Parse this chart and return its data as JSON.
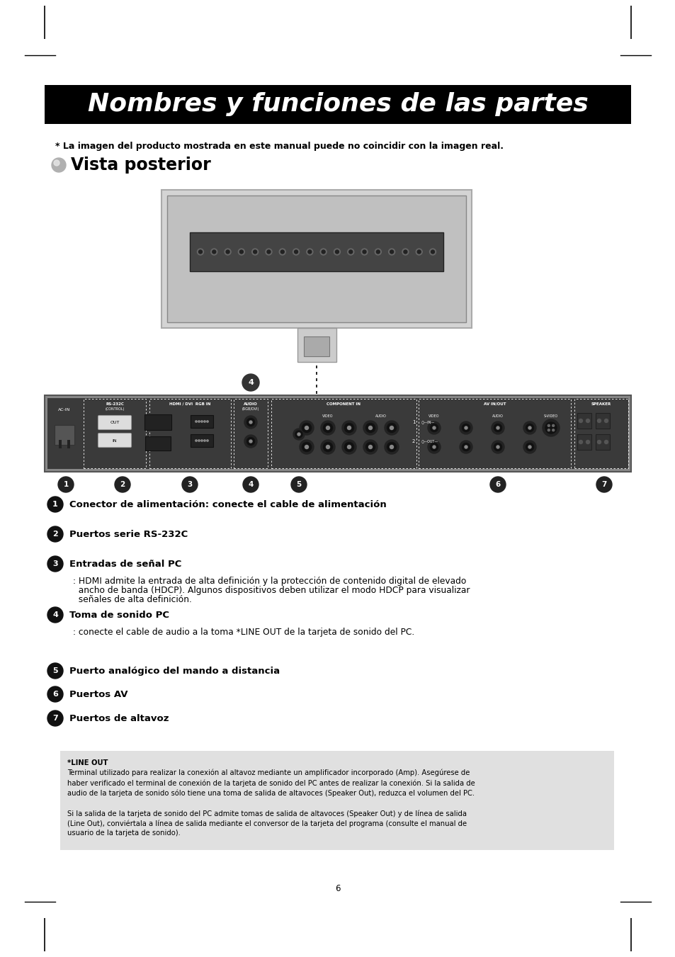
{
  "page_bg": "#ffffff",
  "title_bg": "#000000",
  "title_text": "Nombres y funciones de las partes",
  "title_color": "#ffffff",
  "title_fontsize": 26,
  "subtitle_text": "Vista posterior",
  "subtitle_fontsize": 17,
  "disclaimer_text": "* La imagen del producto mostrada en este manual puede no coincidir con la imagen real.",
  "disclaimer_fontsize": 9,
  "items": [
    {
      "num": "1",
      "bold_text": "Conector de alimentación: conecte el cable de alimentación",
      "extra_lines": []
    },
    {
      "num": "2",
      "bold_text": "Puertos serie RS-232C",
      "extra_lines": []
    },
    {
      "num": "3",
      "bold_text": "Entradas de señal PC",
      "extra_lines": [
        ": HDMI admite la entrada de alta definición y la protección de contenido digital de elevado",
        "  ancho de banda (HDCP). Algunos dispositivos deben utilizar el modo HDCP para visualizar",
        "  señales de alta definición."
      ]
    },
    {
      "num": "4",
      "bold_text": "Toma de sonido PC",
      "extra_lines": [
        ": conecte el cable de audio a la toma *LINE OUT de la tarjeta de sonido del PC."
      ]
    },
    {
      "num": "5",
      "bold_text": "Puerto analógico del mando a distancia",
      "extra_lines": []
    },
    {
      "num": "6",
      "bold_text": "Puertos AV",
      "extra_lines": []
    },
    {
      "num": "7",
      "bold_text": "Puertos de altavoz",
      "extra_lines": []
    }
  ],
  "note_bg": "#e0e0e0",
  "note_title": "*LINE OUT",
  "note_body1": "Terminal utilizado para realizar la conexión al altavoz mediante un amplificador incorporado (Amp). Asegúrese de\nhaber verificado el terminal de conexión de la tarjeta de sonido del PC antes de realizar la conexión. Si la salida de\naudio de la tarjeta de sonido sólo tiene una toma de salida de altavoces (Speaker Out), reduzca el volumen del PC.",
  "note_body2": "Si la salida de la tarjeta de sonido del PC admite tomas de salida de altavoces (Speaker Out) y de línea de salida\n(Line Out), conviértala a línea de salida mediante el conversor de la tarjeta del programa (consulte el manual de\nusuario de la tarjeta de sonido).",
  "note_fontsize": 7.2,
  "page_num": "6"
}
